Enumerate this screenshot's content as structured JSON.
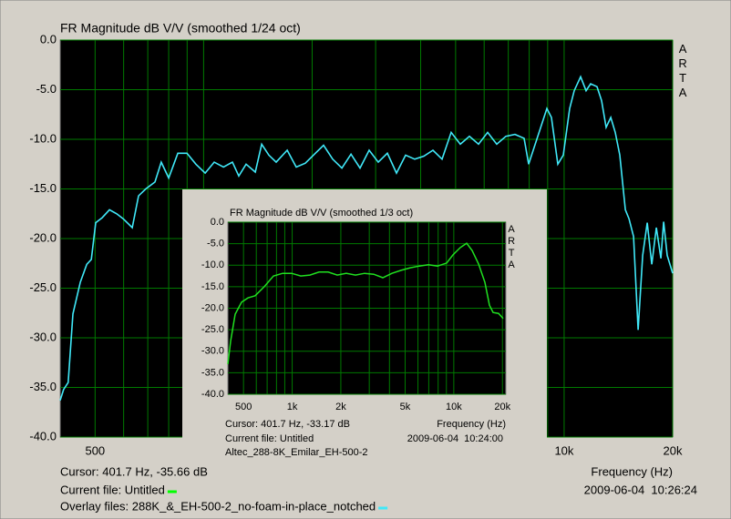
{
  "chart_data": [
    {
      "type": "line",
      "title": "FR Magnitude dB V/V (smoothed 1/24 oct)",
      "watermark": "ARTA",
      "x_label": "Frequency (Hz)",
      "cursor": "Cursor: 401.7 Hz, -35.66 dB",
      "current_file": "Current file: Untitled",
      "current_file_color": "#00ff00",
      "overlay_files": "Overlay files: 288K_&_EH-500-2_no-foam-in-place_notched",
      "overlay_color": "#40e8f8",
      "timestamp": "2009-06-04  10:26:24",
      "xscale": "log",
      "xlim": [
        400,
        20000
      ],
      "xticks": [
        500,
        {
          "value": 10000,
          "label": "10k"
        },
        {
          "value": 20000,
          "label": "20k"
        }
      ],
      "xgrid": [
        500,
        600,
        700,
        800,
        900,
        1000,
        2000,
        3000,
        4000,
        5000,
        6000,
        7000,
        8000,
        9000,
        10000,
        20000
      ],
      "ylim": [
        -40,
        0
      ],
      "yticks": [
        {
          "value": 0,
          "label": "0.0"
        },
        {
          "value": -5,
          "label": "-5.0"
        },
        {
          "value": -10,
          "label": "-10.0"
        },
        {
          "value": -15,
          "label": "-15.0"
        },
        {
          "value": -20,
          "label": "-20.0"
        },
        {
          "value": -25,
          "label": "-25.0"
        },
        {
          "value": -30,
          "label": "-30.0"
        },
        {
          "value": -35,
          "label": "-35.0"
        },
        {
          "value": -40,
          "label": "-40.0"
        }
      ],
      "grid": true,
      "series": [
        {
          "color": "#40e8f8",
          "x": [
            400,
            409,
            421,
            434,
            455,
            474,
            488,
            502,
            523,
            548,
            574,
            598,
            634,
            660,
            691,
            733,
            763,
            800,
            848,
            899,
            952,
            1010,
            1070,
            1135,
            1202,
            1252,
            1312,
            1391,
            1449,
            1517,
            1589,
            1705,
            1807,
            1915,
            2030,
            2152,
            2281,
            2418,
            2563,
            2716,
            2879,
            3051,
            3234,
            3428,
            3633,
            3851,
            4082,
            4326,
            4586,
            4860,
            5152,
            5461,
            5788,
            6134,
            6502,
            6892,
            7305,
            7742,
            7972,
            8450,
            8956,
            9221,
            9603,
            9944,
            10358,
            10664,
            11110,
            11505,
            11845,
            12338,
            12703,
            13079,
            13466,
            13863,
            14273,
            14782,
            15130,
            15578,
            16039,
            16513,
            17001,
            17505,
            18018,
            18550,
            18881,
            19315,
            20000
          ],
          "values": [
            -36.3,
            -35.2,
            -34.5,
            -27.6,
            -24.4,
            -22.6,
            -22.1,
            -18.4,
            -17.9,
            -17.1,
            -17.5,
            -18,
            -18.9,
            -15.7,
            -15,
            -14.3,
            -12.3,
            -13.9,
            -11.4,
            -11.4,
            -12.5,
            -13.4,
            -12.3,
            -12.8,
            -12.3,
            -13.7,
            -12.5,
            -13.3,
            -10.5,
            -11.6,
            -12.3,
            -11.1,
            -12.8,
            -12.4,
            -11.5,
            -10.6,
            -12,
            -12.9,
            -11.5,
            -12.9,
            -11.1,
            -12.3,
            -11.4,
            -13.4,
            -11.6,
            -12,
            -11.7,
            -11.1,
            -12,
            -9.3,
            -10.5,
            -9.7,
            -10.5,
            -9.3,
            -10.5,
            -9.7,
            -9.5,
            -9.9,
            -12.5,
            -9.7,
            -6.9,
            -7.8,
            -12.5,
            -11.6,
            -6.9,
            -5.1,
            -3.7,
            -5.1,
            -4.4,
            -4.7,
            -6.1,
            -8.8,
            -7.8,
            -9.3,
            -11.6,
            -17.1,
            -18,
            -19.8,
            -29.2,
            -21.7,
            -18.4,
            -22.6,
            -18.9,
            -22,
            -18.3,
            -21.7,
            -23.5
          ]
        }
      ]
    },
    {
      "type": "line",
      "title": "FR Magnitude dB V/V (smoothed 1/3 oct)",
      "watermark": "ARTA",
      "x_label": "Frequency (Hz)",
      "cursor": "Cursor: 401.7 Hz, -33.17 dB",
      "current_file": "Current file: Untitled",
      "file_name": "Altec_288-8K_Emilar_EH-500-2",
      "timestamp": "2009-06-04  10:24:00",
      "xscale": "log",
      "xlim": [
        400,
        21000
      ],
      "xticks": [
        500,
        {
          "value": 1000,
          "label": "1k"
        },
        {
          "value": 2000,
          "label": "2k"
        },
        {
          "value": 5000,
          "label": "5k"
        },
        {
          "value": 10000,
          "label": "10k"
        },
        {
          "value": 20000,
          "label": "20k"
        }
      ],
      "xgrid": [
        500,
        600,
        700,
        800,
        900,
        1000,
        2000,
        3000,
        4000,
        5000,
        6000,
        7000,
        8000,
        9000,
        10000,
        20000
      ],
      "ylim": [
        -40,
        0
      ],
      "yticks": [
        {
          "value": 0,
          "label": "0.0"
        },
        {
          "value": -5,
          "label": "-5.0"
        },
        {
          "value": -10,
          "label": "-10.0"
        },
        {
          "value": -15,
          "label": "-15.0"
        },
        {
          "value": -20,
          "label": "-20.0"
        },
        {
          "value": -25,
          "label": "-25.0"
        },
        {
          "value": -30,
          "label": "-30.0"
        },
        {
          "value": -35,
          "label": "-35.0"
        },
        {
          "value": -40,
          "label": "-40.0"
        }
      ],
      "grid": true,
      "series": [
        {
          "color": "#20e020",
          "x": [
            400,
            416,
            444,
            486,
            532,
            590,
            672,
            766,
            872,
            993,
            1131,
            1288,
            1466,
            1670,
            1901,
            2165,
            2465,
            2807,
            3197,
            3640,
            4144,
            4719,
            5373,
            6118,
            6966,
            7931,
            9031,
            9890,
            10972,
            12018,
            12991,
            14225,
            15573,
            16618,
            17508,
            18929,
            20189
          ],
          "values": [
            -33,
            -27.7,
            -21.4,
            -18.6,
            -17.6,
            -17.1,
            -15,
            -12.5,
            -11.9,
            -11.9,
            -12.5,
            -12.3,
            -11.6,
            -11.6,
            -12.3,
            -11.9,
            -12.3,
            -11.9,
            -12.1,
            -12.9,
            -11.9,
            -11.2,
            -10.6,
            -10.2,
            -9.9,
            -10.2,
            -9.5,
            -7.6,
            -5.9,
            -4.9,
            -6.6,
            -9.7,
            -14,
            -19.3,
            -21,
            -21.2,
            -22.4
          ]
        }
      ]
    }
  ]
}
